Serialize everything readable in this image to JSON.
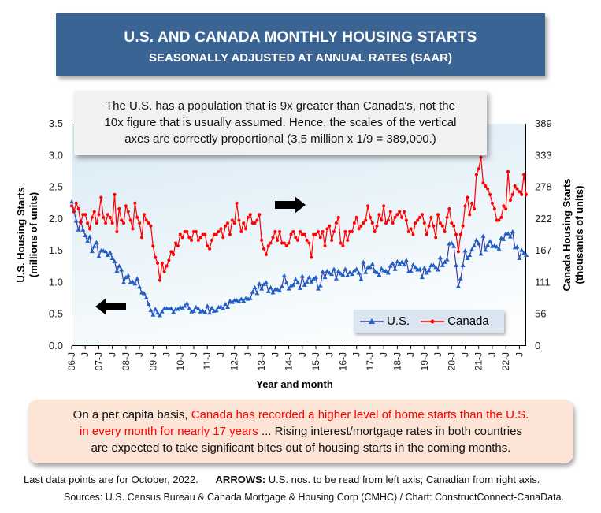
{
  "title": {
    "line1": "U.S. AND CANADA MONTHLY HOUSING STARTS",
    "line2": "SEASONALLY ADJUSTED AT ANNUAL RATES (SAAR)"
  },
  "note": {
    "line1": "The U.S. has a population that is 9x greater than Canada's, not the",
    "line2": "10x figure that is usually assumed. Hence, the scales of the vertical",
    "line3": "axes are correctly proportional (3.5 million x 1/9 = 389,000.)"
  },
  "bottom_note": {
    "pre": "On a per capita basis, ",
    "red1": "Canada has recorded a higher level of home starts than the U.S.",
    "red2": "in every month for nearly 17 years",
    "post1": " ... Rising interest/mortgage rates in both countries",
    "post2": "are expected to take significant bites out of housing starts in the coming months."
  },
  "footer": {
    "last_data": "Last data points are for October, 2022.",
    "arrows_label": "ARROWS:",
    "arrows_text": " U.S. nos. to be read from left axis; Canadian from right axis.",
    "sources": "Sources: U.S. Census Bureau & Canada Mortgage & Housing Corp (CMHC) / Chart: ConstructConnect-CanaData."
  },
  "chart_data": {
    "type": "line",
    "xlabel": "Year and month",
    "ylabel_left": "U.S. Housing Starts\n(millions of units)",
    "ylabel_left_lines": [
      "U.S. Housing Starts",
      "(millions of units)"
    ],
    "ylabel_right_lines": [
      "Canada Housing Starts",
      "(thousands of units)"
    ],
    "ylim_left": [
      0,
      3.5
    ],
    "ylim_right": [
      0,
      389
    ],
    "yticks_left": [
      "0.0",
      "0.5",
      "1.0",
      "1.5",
      "2.0",
      "2.5",
      "3.0",
      "3.5"
    ],
    "yticks_right": [
      "0",
      "56",
      "111",
      "167",
      "222",
      "278",
      "333",
      "389"
    ],
    "x_start": "2006-01",
    "x_end": "2022-10",
    "xtick_labels": [
      "06-J",
      "J",
      "07-J",
      "J",
      "08-J",
      "J",
      "09-J",
      "J",
      "10-J",
      "J",
      "11-J",
      "J",
      "12-J",
      "J",
      "13-J",
      "J",
      "14-J",
      "J",
      "15-J",
      "J",
      "16-J",
      "J",
      "17-J",
      "J",
      "18-J",
      "J",
      "19-J",
      "J",
      "20-J",
      "J",
      "21-J",
      "J",
      "22-J",
      "J"
    ],
    "legend_position": "bottom-right",
    "arrows": {
      "us": "left",
      "canada": "right"
    },
    "series": [
      {
        "name": "U.S.",
        "axis": "left",
        "color": "#1f5fc8",
        "line_color": "#3b3ba0",
        "marker": "triangle",
        "values": [
          2.27,
          2.13,
          1.97,
          1.83,
          1.97,
          1.83,
          1.74,
          1.65,
          1.72,
          1.49,
          1.57,
          1.63,
          1.41,
          1.5,
          1.5,
          1.49,
          1.43,
          1.47,
          1.38,
          1.33,
          1.18,
          1.26,
          1.2,
          1.0,
          1.08,
          1.11,
          1.0,
          1.01,
          0.98,
          1.06,
          0.93,
          0.84,
          0.83,
          0.76,
          0.66,
          0.56,
          0.49,
          0.58,
          0.52,
          0.48,
          0.54,
          0.59,
          0.59,
          0.59,
          0.59,
          0.53,
          0.58,
          0.58,
          0.61,
          0.6,
          0.63,
          0.67,
          0.59,
          0.54,
          0.55,
          0.61,
          0.59,
          0.54,
          0.55,
          0.53,
          0.63,
          0.52,
          0.6,
          0.55,
          0.56,
          0.61,
          0.62,
          0.59,
          0.66,
          0.61,
          0.71,
          0.69,
          0.72,
          0.72,
          0.7,
          0.74,
          0.71,
          0.75,
          0.74,
          0.75,
          0.85,
          0.92,
          0.83,
          0.98,
          0.9,
          0.97,
          1.0,
          0.86,
          0.92,
          0.84,
          0.89,
          0.89,
          0.87,
          0.94,
          1.11,
          1.0,
          0.9,
          0.95,
          0.96,
          1.05,
          1.0,
          0.91,
          1.1,
          0.96,
          1.01,
          1.08,
          1.01,
          1.06,
          1.08,
          0.9,
          0.95,
          1.17,
          1.08,
          1.18,
          1.15,
          1.13,
          1.21,
          1.06,
          1.18,
          1.14,
          1.12,
          1.21,
          1.11,
          1.16,
          1.13,
          1.19,
          1.21,
          1.15,
          1.05,
          1.32,
          1.16,
          1.24,
          1.24,
          1.29,
          1.18,
          1.16,
          1.12,
          1.22,
          1.19,
          1.18,
          1.15,
          1.26,
          1.3,
          1.21,
          1.33,
          1.29,
          1.32,
          1.28,
          1.35,
          1.17,
          1.18,
          1.28,
          1.24,
          1.2,
          1.21,
          1.08,
          1.23,
          1.15,
          1.19,
          1.27,
          1.27,
          1.24,
          1.2,
          1.39,
          1.27,
          1.32,
          1.36,
          1.61,
          1.62,
          1.57,
          1.27,
          0.94,
          1.06,
          1.27,
          1.5,
          1.38,
          1.43,
          1.52,
          1.58,
          1.67,
          1.61,
          1.45,
          1.73,
          1.51,
          1.59,
          1.65,
          1.57,
          1.58,
          1.56,
          1.53,
          1.7,
          1.68,
          1.77,
          1.77,
          1.72,
          1.8,
          1.55,
          1.56,
          1.38,
          1.51,
          1.46,
          1.43
        ]
      },
      {
        "name": "Canada",
        "axis": "right",
        "color": "#ff0000",
        "line_color": "#ff0000",
        "marker": "circle",
        "values": [
          245,
          235,
          250,
          240,
          215,
          230,
          230,
          215,
          205,
          225,
          235,
          215,
          230,
          260,
          225,
          215,
          230,
          225,
          215,
          265,
          200,
          240,
          220,
          215,
          245,
          235,
          220,
          205,
          250,
          225,
          215,
          190,
          230,
          220,
          215,
          210,
          175,
          155,
          145,
          115,
          145,
          130,
          140,
          150,
          165,
          160,
          180,
          175,
          195,
          190,
          200,
          200,
          190,
          185,
          200,
          200,
          185,
          190,
          195,
          195,
          175,
          170,
          185,
          195,
          195,
          200,
          205,
          190,
          210,
          215,
          195,
          220,
          215,
          250,
          220,
          200,
          215,
          205,
          225,
          230,
          215,
          215,
          220,
          230,
          185,
          170,
          160,
          175,
          180,
          190,
          200,
          185,
          200,
          180,
          180,
          175,
          180,
          195,
          200,
          190,
          185,
          200,
          195,
          195,
          185,
          180,
          155,
          195,
          195,
          200,
          190,
          200,
          175,
          205,
          210,
          185,
          200,
          215,
          225,
          180,
          175,
          200,
          185,
          200,
          200,
          215,
          225,
          205,
          210,
          215,
          220,
          245,
          225,
          215,
          200,
          210,
          230,
          220,
          245,
          215,
          220,
          235,
          215,
          225,
          230,
          235,
          225,
          235,
          220,
          200,
          205,
          195,
          215,
          220,
          225,
          230,
          215,
          195,
          210,
          225,
          210,
          190,
          230,
          215,
          210,
          200,
          225,
          240,
          215,
          210,
          195,
          165,
          195,
          210,
          245,
          260,
          230,
          250,
          240,
          300,
          310,
          330,
          285,
          280,
          275,
          265,
          250,
          240,
          220,
          220,
          225,
          245,
          240,
          305,
          255,
          265,
          280,
          275,
          270,
          265,
          300,
          265
        ]
      }
    ]
  }
}
